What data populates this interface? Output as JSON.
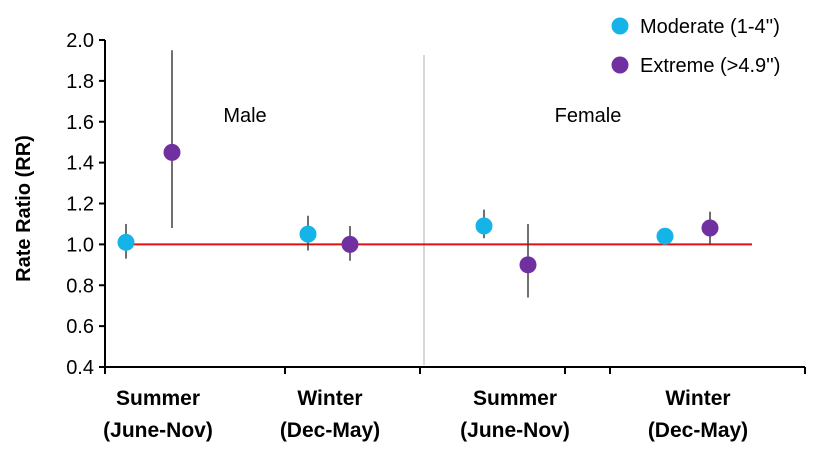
{
  "chart_data": {
    "type": "scatter",
    "title": "",
    "xlabel": "",
    "ylabel": "Rate Ratio (RR)",
    "ylim": [
      0.4,
      2.0
    ],
    "yticks": [
      0.4,
      0.6,
      0.8,
      1.0,
      1.2,
      1.4,
      1.6,
      1.8,
      2.0
    ],
    "ytick_labels": [
      "0.4",
      "0.6",
      "0.8",
      "1.0",
      "1.2",
      "1.4",
      "1.6",
      "1.8",
      "2.0"
    ],
    "reference_line": {
      "value": 1.0,
      "color": "#e01010"
    },
    "panels": [
      {
        "label": "Male"
      },
      {
        "label": "Female"
      }
    ],
    "categories": [
      {
        "line1": "Summer",
        "line2": "(June-Nov)",
        "panel": 0
      },
      {
        "line1": "Winter",
        "line2": "(Dec-May)",
        "panel": 0
      },
      {
        "line1": "Summer",
        "line2": "(June-Nov)",
        "panel": 1
      },
      {
        "line1": "Winter",
        "line2": "(Dec-May)",
        "panel": 1
      }
    ],
    "series": [
      {
        "name": "Moderate (1-4'')",
        "color": "#14b4e8",
        "values": [
          1.01,
          1.05,
          1.09,
          1.04
        ],
        "ci_low": [
          0.93,
          0.97,
          1.03,
          1.02
        ],
        "ci_high": [
          1.1,
          1.14,
          1.17,
          1.08
        ]
      },
      {
        "name": "Extreme (>4.9'')",
        "color": "#7030a0",
        "values": [
          1.45,
          1.0,
          0.9,
          1.08
        ],
        "ci_low": [
          1.08,
          0.92,
          0.74,
          1.0
        ],
        "ci_high": [
          1.95,
          1.09,
          1.1,
          1.16
        ]
      }
    ],
    "legend_position": "top-right",
    "grid": false
  }
}
